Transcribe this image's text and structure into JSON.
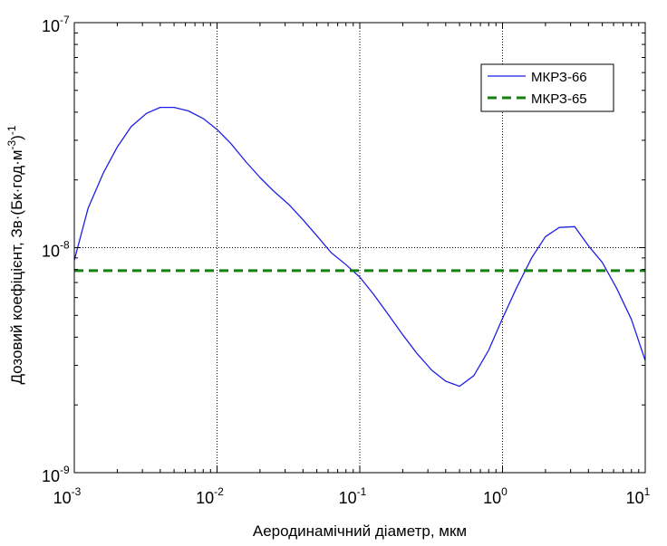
{
  "chart_data": {
    "type": "line",
    "xscale": "log",
    "yscale": "log",
    "xlim": [
      0.001,
      10
    ],
    "ylim": [
      1e-09,
      1e-07
    ],
    "grid": "major-dotted",
    "legend_position": "top-right",
    "xlabel": "Аеродинамічний діаметр, мкм",
    "ylabel_parts": {
      "prefix": "Дозовий коефіцієнт, Зв·(Бк·год·м",
      "exp1": "-3",
      "middle": ")",
      "exp2": "-1"
    },
    "x_ticks": [
      {
        "base": "10",
        "exp": "-3",
        "value": 0.001
      },
      {
        "base": "10",
        "exp": "-2",
        "value": 0.01
      },
      {
        "base": "10",
        "exp": "-1",
        "value": 0.1
      },
      {
        "base": "10",
        "exp": "0",
        "value": 1
      },
      {
        "base": "10",
        "exp": "1",
        "value": 10
      }
    ],
    "y_ticks": [
      {
        "base": "10",
        "exp": "-9",
        "value": 1e-09
      },
      {
        "base": "10",
        "exp": "-8",
        "value": 1e-08
      },
      {
        "base": "10",
        "exp": "-7",
        "value": 1e-07
      }
    ],
    "series": [
      {
        "name": "МКРЗ-66",
        "color": "#1f1fe6",
        "style": "solid",
        "x": [
          0.001,
          0.00125,
          0.0016,
          0.002,
          0.0025,
          0.0032,
          0.004,
          0.005,
          0.0063,
          0.008,
          0.01,
          0.0125,
          0.016,
          0.02,
          0.025,
          0.032,
          0.04,
          0.05,
          0.063,
          0.08,
          0.1,
          0.125,
          0.16,
          0.2,
          0.25,
          0.32,
          0.4,
          0.5,
          0.63,
          0.8,
          1.0,
          1.25,
          1.6,
          2.0,
          2.5,
          3.2,
          4.0,
          5.0,
          6.3,
          8.0,
          10.0
        ],
        "y": [
          8.8e-09,
          1.5e-08,
          2.15e-08,
          2.8e-08,
          3.45e-08,
          3.95e-08,
          4.2e-08,
          4.2e-08,
          4.05e-08,
          3.75e-08,
          3.35e-08,
          2.9e-08,
          2.4e-08,
          2.05e-08,
          1.78e-08,
          1.55e-08,
          1.33e-08,
          1.13e-08,
          9.5e-09,
          8.4e-09,
          7.4e-09,
          6.2e-09,
          5e-09,
          4.1e-09,
          3.4e-09,
          2.85e-09,
          2.55e-09,
          2.42e-09,
          2.7e-09,
          3.5e-09,
          4.85e-09,
          6.6e-09,
          9e-09,
          1.12e-08,
          1.23e-08,
          1.24e-08,
          1.02e-08,
          8.6e-09,
          6.6e-09,
          4.8e-09,
          3.15e-09
        ]
      },
      {
        "name": "МКРЗ-65",
        "color": "#137f13",
        "style": "dashed",
        "x": [
          0.001,
          10
        ],
        "y": [
          7.9e-09,
          7.9e-09
        ]
      }
    ]
  }
}
